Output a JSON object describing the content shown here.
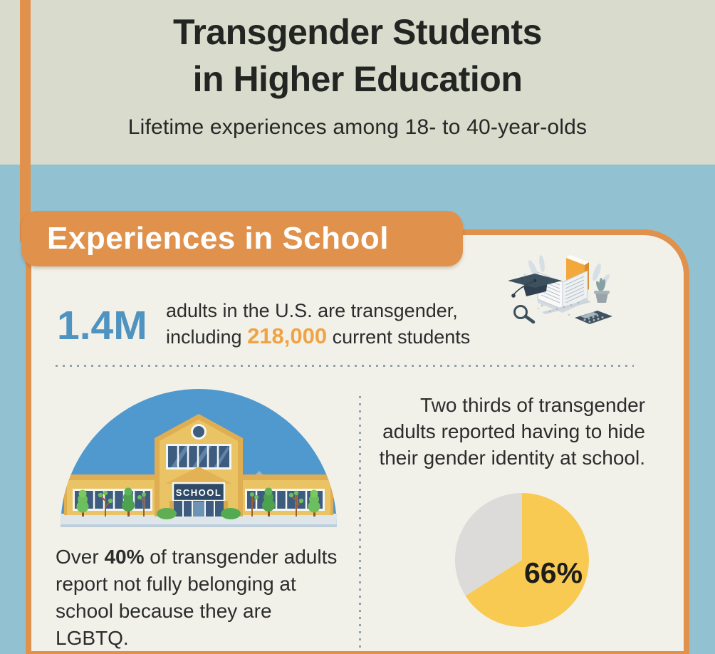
{
  "palette": {
    "header_bg": "#d9dbcc",
    "page_blue": "#92c2d2",
    "accent_orange": "#e0914c",
    "card_bg": "#f2f1e9",
    "stat_blue": "#4f93c0",
    "highlight_orange": "#f0a344",
    "pie_yellow": "#f8ca52",
    "pie_gray": "#dcdbd9",
    "text_dark": "#2b2d2c"
  },
  "header": {
    "title_line1": "Transgender Students",
    "title_line2": "in Higher Education",
    "subtitle": "Lifetime experiences among 18- to 40-year-olds"
  },
  "section_banner": {
    "label": "Experiences in School"
  },
  "stat_row": {
    "big_number": "1.4M",
    "line1": "adults in the U.S. are transgender,",
    "line2_pre": "including ",
    "line2_highlight": "218,000",
    "line2_post": " current students"
  },
  "school_block": {
    "sign_text": "SCHOOL",
    "caption_pre": "Over ",
    "caption_bold": "40%",
    "caption_post": " of transgender adults report not fully belonging at school because they are LGBTQ."
  },
  "hide_identity_block": {
    "text": "Two thirds of transgender adults reported having to hide their gender identity at school."
  },
  "chart_data": {
    "type": "pie",
    "title": "Two thirds of transgender adults reported having to hide their gender identity at school.",
    "label": "66%",
    "slices": [
      {
        "name": "Had to hide gender identity at school",
        "value": 66,
        "color": "#f8ca52"
      },
      {
        "name": "Remainder",
        "value": 34,
        "color": "#dcdbd9"
      }
    ],
    "legend_position": "none",
    "start_angle_deg": 0,
    "direction": "clockwise"
  }
}
